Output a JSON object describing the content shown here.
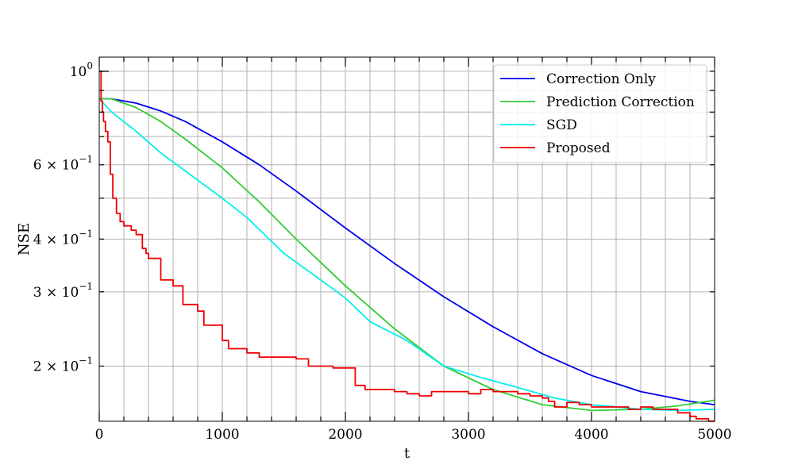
{
  "chart_data": {
    "type": "line",
    "title": "",
    "xlabel": "t",
    "ylabel": "NSE",
    "xlim": [
      0,
      5000
    ],
    "ylim": [
      0.148,
      1.08
    ],
    "yscale": "log",
    "grid": true,
    "legend_position": "top-right",
    "x_ticks": [
      {
        "value": 0,
        "label": "0"
      },
      {
        "value": 1000,
        "label": "1000"
      },
      {
        "value": 2000,
        "label": "2000"
      },
      {
        "value": 3000,
        "label": "3000"
      },
      {
        "value": 4000,
        "label": "4000"
      },
      {
        "value": 5000,
        "label": "5000"
      }
    ],
    "y_ticks": [
      {
        "value": 1.0,
        "base": "10",
        "exp": "0"
      },
      {
        "value": 0.6,
        "base": "6 × 10",
        "exp": "−1"
      },
      {
        "value": 0.4,
        "base": "4 × 10",
        "exp": "−1"
      },
      {
        "value": 0.3,
        "base": "3 × 10",
        "exp": "−1"
      },
      {
        "value": 0.2,
        "base": "2 × 10",
        "exp": "−1"
      }
    ],
    "series": [
      {
        "name": "Correction Only",
        "color": "#0000ee",
        "step": false,
        "x": [
          0,
          100,
          300,
          500,
          700,
          1000,
          1300,
          1600,
          2000,
          2400,
          2800,
          3200,
          3600,
          4000,
          4400,
          4800,
          5000
        ],
        "y": [
          0.86,
          0.86,
          0.84,
          0.805,
          0.76,
          0.68,
          0.6,
          0.52,
          0.425,
          0.35,
          0.292,
          0.248,
          0.214,
          0.19,
          0.174,
          0.165,
          0.162
        ]
      },
      {
        "name": "Prediction Correction",
        "color": "#33cc33",
        "step": false,
        "x": [
          0,
          100,
          300,
          500,
          700,
          1000,
          1300,
          1600,
          2000,
          2400,
          2800,
          3200,
          3600,
          4000,
          4400,
          4700,
          5000
        ],
        "y": [
          0.86,
          0.86,
          0.82,
          0.76,
          0.69,
          0.59,
          0.49,
          0.4,
          0.31,
          0.245,
          0.2,
          0.176,
          0.162,
          0.157,
          0.158,
          0.161,
          0.166
        ]
      },
      {
        "name": "SGD",
        "color": "#00eeee",
        "step": false,
        "x": [
          0,
          100,
          300,
          500,
          700,
          1000,
          1200,
          1500,
          1800,
          2000,
          2200,
          2500,
          2800,
          3100,
          3400,
          3700,
          4000,
          4400,
          4700,
          5000
        ],
        "y": [
          0.86,
          0.8,
          0.72,
          0.64,
          0.58,
          0.5,
          0.45,
          0.37,
          0.32,
          0.29,
          0.255,
          0.23,
          0.2,
          0.188,
          0.178,
          0.168,
          0.162,
          0.158,
          0.157,
          0.158
        ]
      },
      {
        "name": "Proposed",
        "color": "#ee0000",
        "step": true,
        "x": [
          0,
          15,
          25,
          35,
          50,
          70,
          90,
          110,
          140,
          170,
          200,
          230,
          260,
          300,
          350,
          380,
          400,
          500,
          600,
          680,
          800,
          850,
          1000,
          1050,
          1200,
          1300,
          1400,
          1600,
          1700,
          1750,
          1900,
          2000,
          2080,
          2160,
          2400,
          2500,
          2600,
          2700,
          2800,
          3000,
          3100,
          3200,
          3300,
          3400,
          3500,
          3600,
          3650,
          3700,
          3800,
          3900,
          4000,
          4100,
          4200,
          4300,
          4400,
          4500,
          4600,
          4700,
          4800,
          4850,
          4900,
          4950,
          5000
        ],
        "y": [
          1.0,
          0.85,
          0.8,
          0.76,
          0.72,
          0.68,
          0.57,
          0.5,
          0.46,
          0.44,
          0.43,
          0.43,
          0.42,
          0.41,
          0.38,
          0.37,
          0.36,
          0.32,
          0.31,
          0.28,
          0.27,
          0.25,
          0.23,
          0.22,
          0.215,
          0.21,
          0.21,
          0.208,
          0.2,
          0.2,
          0.198,
          0.198,
          0.18,
          0.176,
          0.174,
          0.172,
          0.17,
          0.174,
          0.174,
          0.172,
          0.176,
          0.174,
          0.174,
          0.172,
          0.17,
          0.168,
          0.165,
          0.16,
          0.164,
          0.162,
          0.16,
          0.16,
          0.16,
          0.158,
          0.16,
          0.158,
          0.158,
          0.155,
          0.152,
          0.15,
          0.15,
          0.148,
          0.148
        ]
      }
    ]
  }
}
